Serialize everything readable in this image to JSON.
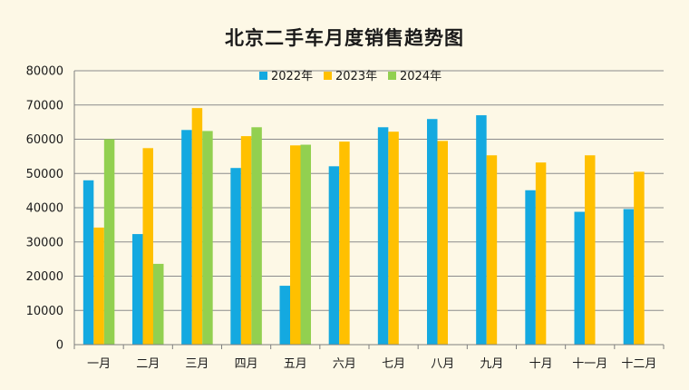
{
  "chart_data": {
    "type": "bar",
    "title": "北京二手车月度销售趋势图",
    "xlabel": "",
    "ylabel": "",
    "ylim": [
      0,
      80000
    ],
    "yticks": [
      0,
      10000,
      20000,
      30000,
      40000,
      50000,
      60000,
      70000,
      80000
    ],
    "grid": true,
    "legend_position": "top",
    "categories": [
      "一月",
      "二月",
      "三月",
      "四月",
      "五月",
      "六月",
      "七月",
      "八月",
      "九月",
      "十月",
      "十一月",
      "十二月"
    ],
    "series": [
      {
        "name": "2022年",
        "color": "#14a9e0",
        "values": [
          48000,
          32300,
          62700,
          51600,
          17200,
          52100,
          63500,
          65900,
          67000,
          45100,
          38800,
          39600
        ]
      },
      {
        "name": "2023年",
        "color": "#ffc000",
        "values": [
          34200,
          57400,
          69100,
          60900,
          58200,
          59300,
          62200,
          59500,
          55300,
          53200,
          55300,
          50500
        ]
      },
      {
        "name": "2024年",
        "color": "#92d050",
        "values": [
          60000,
          23600,
          62400,
          63500,
          58400,
          null,
          null,
          null,
          null,
          null,
          null,
          null
        ]
      }
    ]
  }
}
